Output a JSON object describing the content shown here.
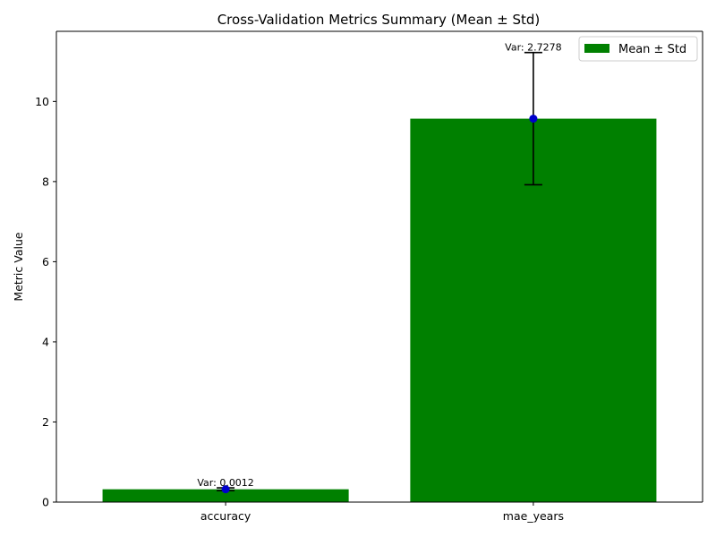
{
  "chart_data": {
    "type": "bar",
    "title": "Cross-Validation Metrics Summary (Mean ± Std)",
    "xlabel": "",
    "ylabel": "Metric Value",
    "categories": [
      "accuracy",
      "mae_years"
    ],
    "series": [
      {
        "name": "Mean ± Std",
        "values": [
          0.32,
          9.57
        ],
        "std": [
          0.035,
          1.65
        ],
        "color": "#008000"
      }
    ],
    "annotations": [
      "Var: 0.0012",
      "Var: 2.7278"
    ],
    "ylim": [
      0,
      11.75
    ],
    "yticks": [
      0,
      2,
      4,
      6,
      8,
      10
    ],
    "point_color": "#0000cc",
    "errorbar_color": "#000000",
    "grid": false,
    "legend_position": "top-right"
  }
}
